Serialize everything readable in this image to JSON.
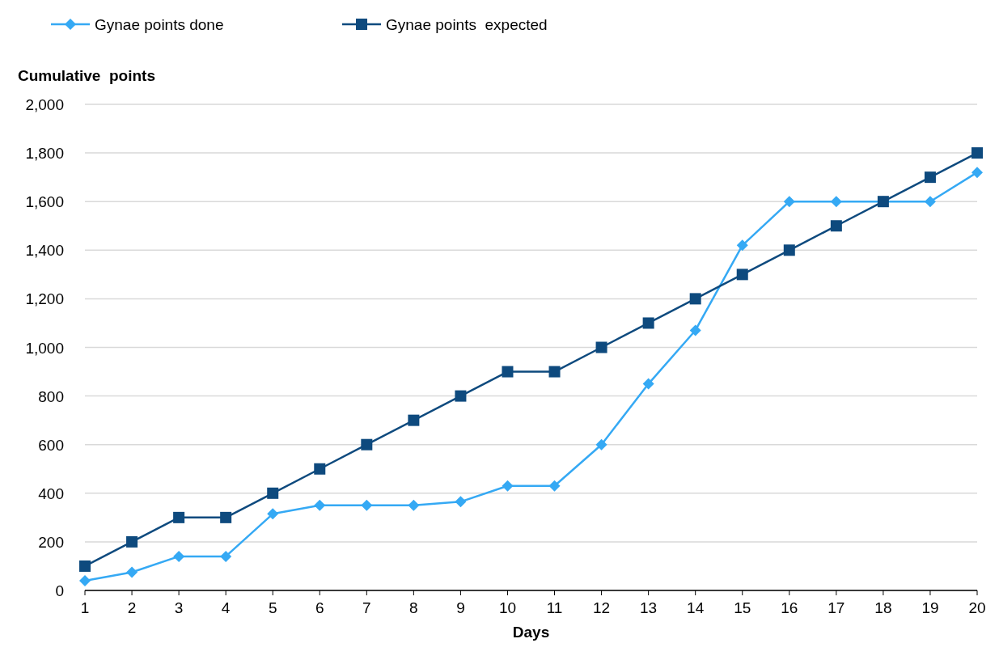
{
  "chart_data": {
    "type": "line",
    "xlabel": "Days",
    "ylabel": "Cumulative  points",
    "x": [
      1,
      2,
      3,
      4,
      5,
      6,
      7,
      8,
      9,
      10,
      11,
      12,
      13,
      14,
      15,
      16,
      17,
      18,
      19,
      20
    ],
    "series": [
      {
        "name": "Gynae points done",
        "color": "#35a9f4",
        "marker": "diamond",
        "values": [
          40,
          75,
          140,
          140,
          315,
          350,
          350,
          350,
          365,
          430,
          430,
          600,
          850,
          1070,
          1420,
          1600,
          1600,
          1600,
          1600,
          1720
        ]
      },
      {
        "name": "Gynae points  expected",
        "color": "#0e4a7e",
        "marker": "square",
        "values": [
          100,
          200,
          300,
          300,
          400,
          500,
          600,
          700,
          800,
          900,
          900,
          1000,
          1100,
          1200,
          1300,
          1400,
          1500,
          1600,
          1700,
          1800
        ]
      }
    ],
    "xlim": [
      1,
      20
    ],
    "xticks": [
      1,
      2,
      3,
      4,
      5,
      6,
      7,
      8,
      9,
      10,
      11,
      12,
      13,
      14,
      15,
      16,
      17,
      18,
      19,
      20
    ],
    "ylim": [
      0,
      2000
    ],
    "yticks": [
      {
        "value": 0,
        "label": "0"
      },
      {
        "value": 200,
        "label": "200"
      },
      {
        "value": 400,
        "label": "400"
      },
      {
        "value": 600,
        "label": "600"
      },
      {
        "value": 800,
        "label": "800"
      },
      {
        "value": 1000,
        "label": "1,000"
      },
      {
        "value": 1200,
        "label": "1,200"
      },
      {
        "value": 1400,
        "label": "1,400"
      },
      {
        "value": 1600,
        "label": "1,600"
      },
      {
        "value": 1800,
        "label": "1,800"
      },
      {
        "value": 2000,
        "label": "2,000"
      }
    ],
    "grid": "y",
    "legend": "top left",
    "line_style": "solid"
  }
}
